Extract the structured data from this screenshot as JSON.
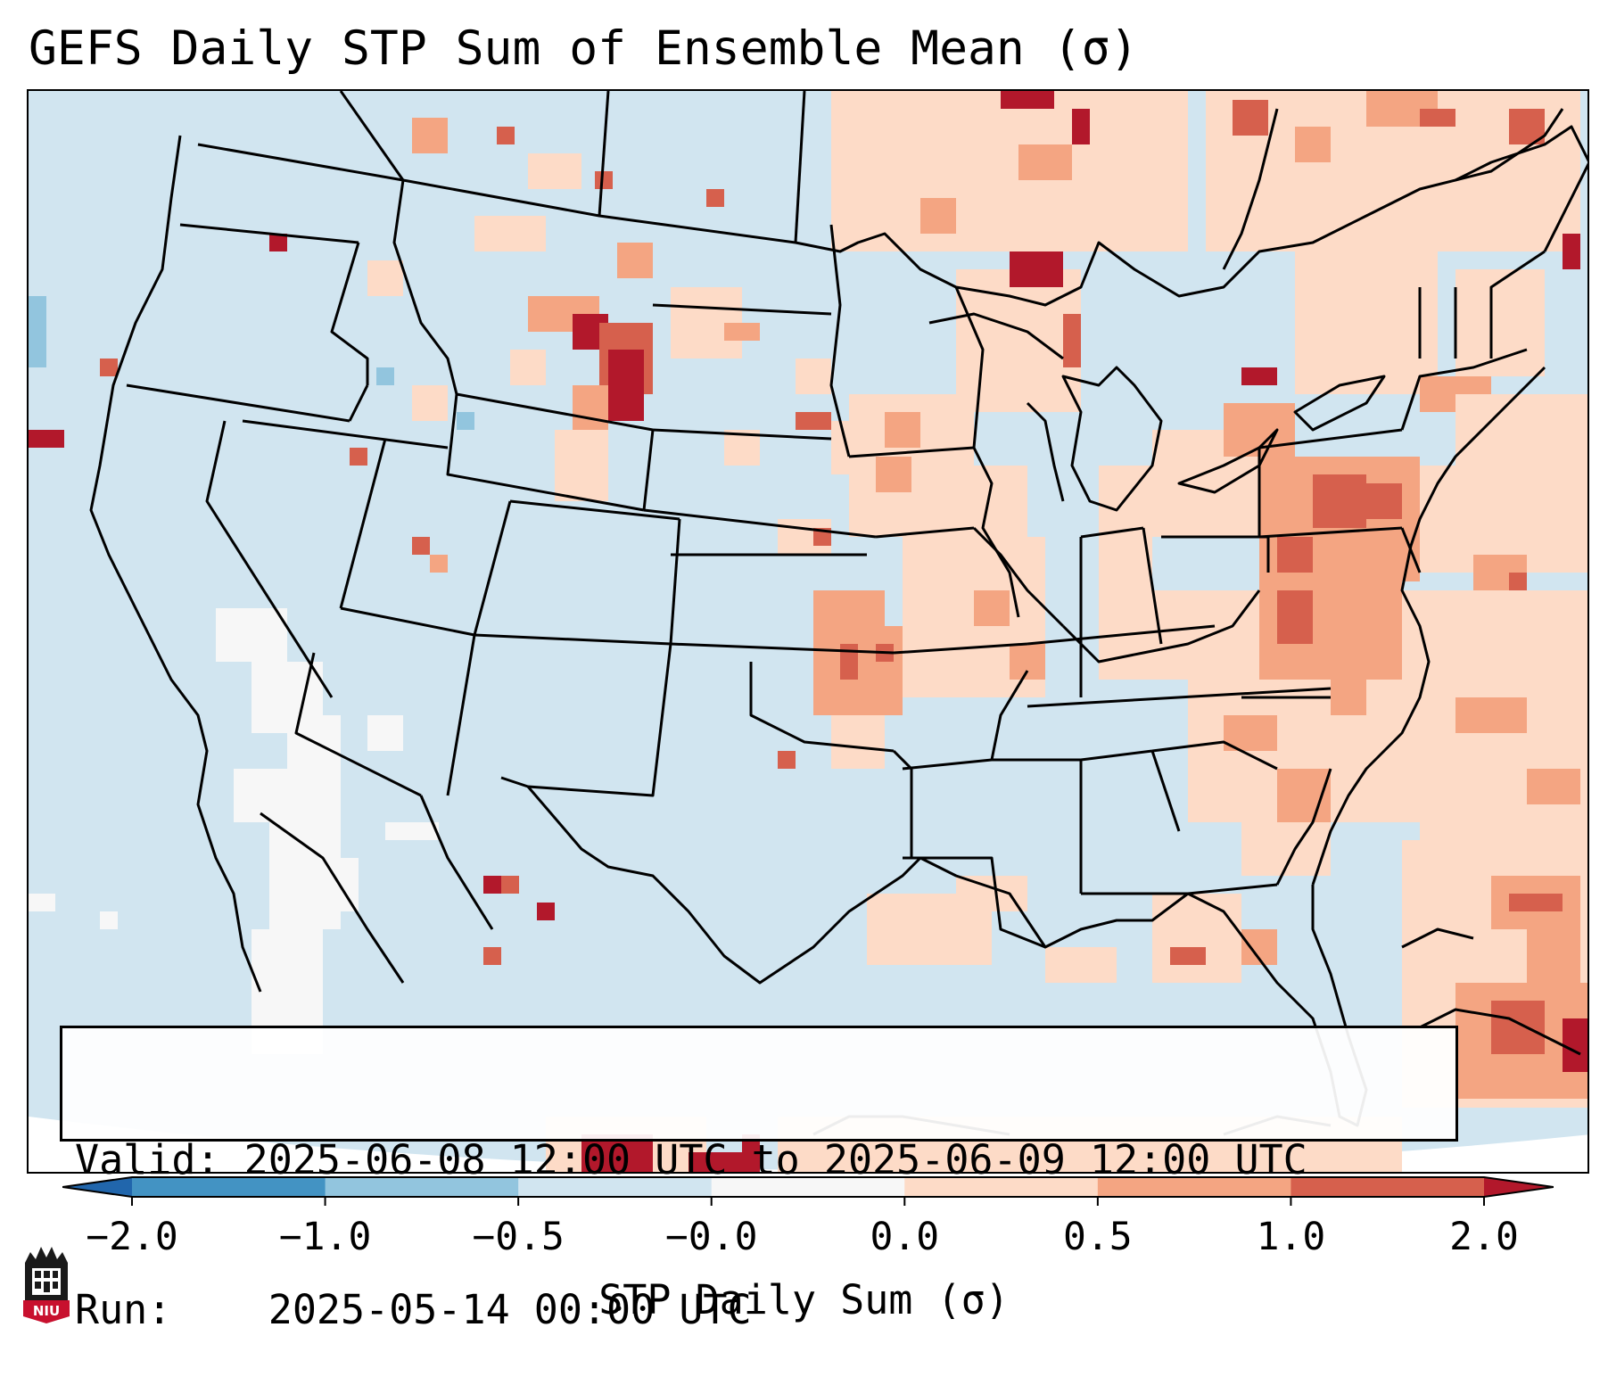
{
  "title": "GEFS Daily STP Sum of Ensemble Mean (σ)",
  "info_box": {
    "valid_label": "Valid:",
    "valid_value": "2025-06-08 12:00 UTC to 2025-06-09 12:00 UTC",
    "run_label": "Run:",
    "run_value": "2025-05-14 00:00 UTC"
  },
  "colorbar": {
    "label": "STP Daily Sum (σ)",
    "ticks": [
      "−2.0",
      "−1.0",
      "−0.5",
      "−0.0",
      "0.0",
      "0.5",
      "1.0",
      "2.0"
    ],
    "bins": [
      {
        "from": "below",
        "to": -2.0,
        "color": "#2166ac"
      },
      {
        "from": -2.0,
        "to": -1.0,
        "color": "#4393c3"
      },
      {
        "from": -1.0,
        "to": -0.5,
        "color": "#92c5de"
      },
      {
        "from": -0.5,
        "to": -0.0,
        "color": "#d1e5f0"
      },
      {
        "from": -0.0,
        "to": 0.0,
        "color": "#f7f7f7"
      },
      {
        "from": 0.0,
        "to": 0.5,
        "color": "#fddbc7"
      },
      {
        "from": 0.5,
        "to": 1.0,
        "color": "#f4a582"
      },
      {
        "from": 1.0,
        "to": 2.0,
        "color": "#d6604d"
      },
      {
        "from": 2.0,
        "to": "above",
        "color": "#b2182b"
      }
    ],
    "extend": "both"
  },
  "map": {
    "projection": "Lambert Conformal, CONUS",
    "background_color": "#d1e5f0",
    "border_color": "#000000",
    "features": [
      "coastlines",
      "US state borders",
      "Canada and Mexico borders"
    ]
  },
  "logo": {
    "text": "NIU",
    "colors": {
      "primary": "#c8102e",
      "dark": "#1a1a1a"
    }
  }
}
